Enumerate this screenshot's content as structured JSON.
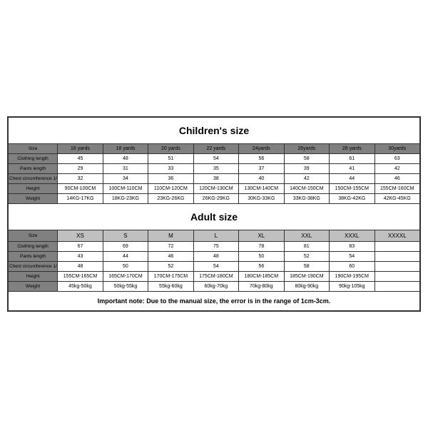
{
  "children": {
    "title": "Children's size",
    "row_labels": [
      "Size",
      "Clothing length",
      "Pants length",
      "Chest circumference 1/2",
      "Height",
      "Weight"
    ],
    "headers": [
      "16 yards",
      "18 yards",
      "20 yards",
      "22 yards",
      "24yards",
      "26yards",
      "28 yards",
      "30yards"
    ],
    "rows": [
      [
        "45",
        "48",
        "51",
        "54",
        "56",
        "58",
        "61",
        "63"
      ],
      [
        "29",
        "31",
        "33",
        "35",
        "37",
        "39",
        "41",
        "42"
      ],
      [
        "32",
        "34",
        "36",
        "38",
        "40",
        "42",
        "44",
        "46"
      ],
      [
        "90CM-100CM",
        "100CM-110CM",
        "110CM-120CM",
        "120CM-130CM",
        "130CM-140CM",
        "140CM-150CM",
        "150CM-155CM",
        "155CM-160CM"
      ],
      [
        "14KG-17KG",
        "18KG-23KG",
        "23KG-26KG",
        "26KG-29KG",
        "30KG-33KG",
        "33KG-38KG",
        "38KG-42KG",
        "42KG-45KG"
      ]
    ]
  },
  "adult": {
    "title": "Adult size",
    "row_labels": [
      "Size",
      "Clothing length",
      "Pants length",
      "Chest circumference 1/2",
      "Height",
      "Weight"
    ],
    "headers": [
      "XS",
      "S",
      "M",
      "L",
      "XL",
      "XXL",
      "XXXL",
      "XXXXL"
    ],
    "rows": [
      [
        "67",
        "69",
        "72",
        "75",
        "78",
        "81",
        "83",
        ""
      ],
      [
        "43",
        "44",
        "46",
        "48",
        "50",
        "52",
        "54",
        ""
      ],
      [
        "48",
        "50",
        "52",
        "54",
        "56",
        "58",
        "60",
        ""
      ],
      [
        "155CM-165CM",
        "165CM-170CM",
        "170CM-175CM",
        "175CM-180CM",
        "180CM-185CM",
        "185CM-190CM",
        "190CM-195CM",
        ""
      ],
      [
        "45kg-50kg",
        "50kg-55kg",
        "55kg-60kg",
        "60kg-70kg",
        "70kg-80kg",
        "80kg-90kg",
        "90kg-105kg",
        ""
      ]
    ]
  },
  "note": "Important note: Due to the manual size, the error is in the range of 1cm-3cm."
}
